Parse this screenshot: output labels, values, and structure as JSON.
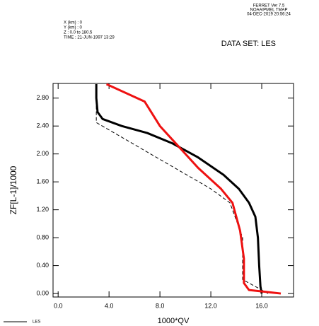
{
  "chart_data": {
    "type": "line",
    "header_left": [
      "X (km) : 0",
      "Y (km) : 0",
      "Z : 0.0 to 180.5",
      "TIME : 21-JUN-1997 13:29"
    ],
    "header_right": [
      "FERRET Ver 7.5",
      "NOAA/PMEL TMAP",
      "04-DEC-2019 20:56:24"
    ],
    "dataset": "DATA SET: LES",
    "x_label": "1000*QV",
    "y_label": "ZF[L-1]/1000",
    "xlim": [
      -0.4,
      18.5
    ],
    "ylim": [
      -0.05,
      3.01
    ],
    "xticks": [
      {
        "value": 0,
        "label": "0.0"
      },
      {
        "value": 4,
        "label": "4.0"
      },
      {
        "value": 8,
        "label": "8.0"
      },
      {
        "value": 12,
        "label": "12.0"
      },
      {
        "value": 16,
        "label": "16.0"
      }
    ],
    "yticks": [
      {
        "value": 0,
        "label": "0.00"
      },
      {
        "value": 0.4,
        "label": "0.40"
      },
      {
        "value": 0.8,
        "label": "0.80"
      },
      {
        "value": 1.2,
        "label": "1.20"
      },
      {
        "value": 1.6,
        "label": "1.60"
      },
      {
        "value": 2.0,
        "label": "2.00"
      },
      {
        "value": 2.4,
        "label": "2.40"
      },
      {
        "value": 2.8,
        "label": "2.80"
      }
    ],
    "series": [
      {
        "name": "LES",
        "color": "#000000",
        "width": 3,
        "dashed": false,
        "x": [
          16.0,
          15.9,
          15.8,
          15.7,
          15.5,
          15.0,
          14.2,
          13.0,
          11.0,
          9.0,
          7.0,
          5.0,
          3.5,
          3.1,
          3.0,
          3.0
        ],
        "values": [
          0.0,
          0.1,
          0.4,
          0.8,
          1.1,
          1.3,
          1.5,
          1.7,
          1.95,
          2.15,
          2.3,
          2.4,
          2.5,
          2.6,
          2.8,
          3.0
        ]
      },
      {
        "color": "#000000",
        "width": 1,
        "dashed": true,
        "x": [
          16.5,
          14.5,
          14.5,
          13.5,
          12.0,
          3.0,
          3.0
        ],
        "values": [
          0.0,
          0.2,
          0.8,
          1.3,
          1.5,
          2.45,
          3.0
        ]
      },
      {
        "color": "#ee1111",
        "width": 3,
        "dashed": false,
        "x": [
          17.5,
          15.0,
          14.6,
          14.6,
          14.3,
          13.7,
          12.8,
          11.0,
          9.5,
          8.0,
          6.8,
          3.8
        ],
        "values": [
          0.0,
          0.05,
          0.15,
          0.5,
          0.9,
          1.3,
          1.5,
          1.8,
          2.1,
          2.4,
          2.75,
          3.0
        ]
      }
    ]
  }
}
